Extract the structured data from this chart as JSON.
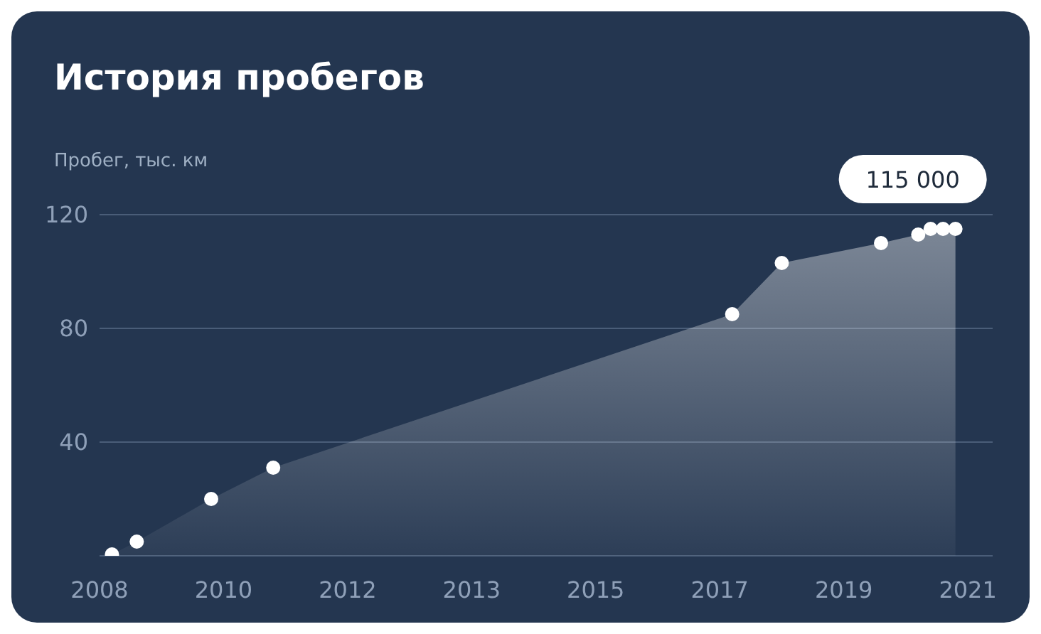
{
  "chart_data": {
    "type": "area",
    "title": "История пробегов",
    "ylabel": "Пробег, тыс. км",
    "categories": [
      "2008",
      null,
      null,
      null,
      null,
      null,
      null,
      null,
      null,
      null,
      "2010",
      null,
      null,
      null,
      null,
      null,
      null,
      null,
      null,
      null,
      "2012",
      null,
      null,
      null,
      null,
      null,
      null,
      null,
      null,
      null,
      "2013",
      null,
      null,
      null,
      null,
      null,
      null,
      null,
      null,
      null,
      "2015",
      null,
      null,
      null,
      null,
      null,
      null,
      null,
      null,
      null,
      "2017",
      null,
      null,
      null,
      null,
      null,
      null,
      null,
      null,
      null,
      "2019",
      null,
      null,
      null,
      null,
      null,
      null,
      null,
      null,
      null,
      "2021",
      null,
      null
    ],
    "series": [
      {
        "color": "#ffffff",
        "values": [
          null,
          0.5,
          null,
          5,
          null,
          null,
          null,
          null,
          null,
          20,
          null,
          null,
          null,
          null,
          31,
          null,
          null,
          null,
          null,
          null,
          null,
          null,
          null,
          null,
          null,
          null,
          null,
          null,
          null,
          null,
          null,
          null,
          null,
          null,
          null,
          null,
          null,
          null,
          null,
          null,
          null,
          null,
          null,
          null,
          null,
          null,
          null,
          null,
          null,
          null,
          null,
          85,
          null,
          null,
          null,
          103,
          null,
          null,
          null,
          null,
          null,
          null,
          null,
          110,
          null,
          null,
          113,
          115,
          115,
          115,
          null,
          null,
          null
        ]
      }
    ],
    "ylim": [
      0,
      120
    ],
    "yticks": [
      {
        "value": 0,
        "label": null
      },
      40,
      80,
      120
    ],
    "grid": "y",
    "marker": "circle",
    "annotations": [
      "115 000"
    ]
  }
}
